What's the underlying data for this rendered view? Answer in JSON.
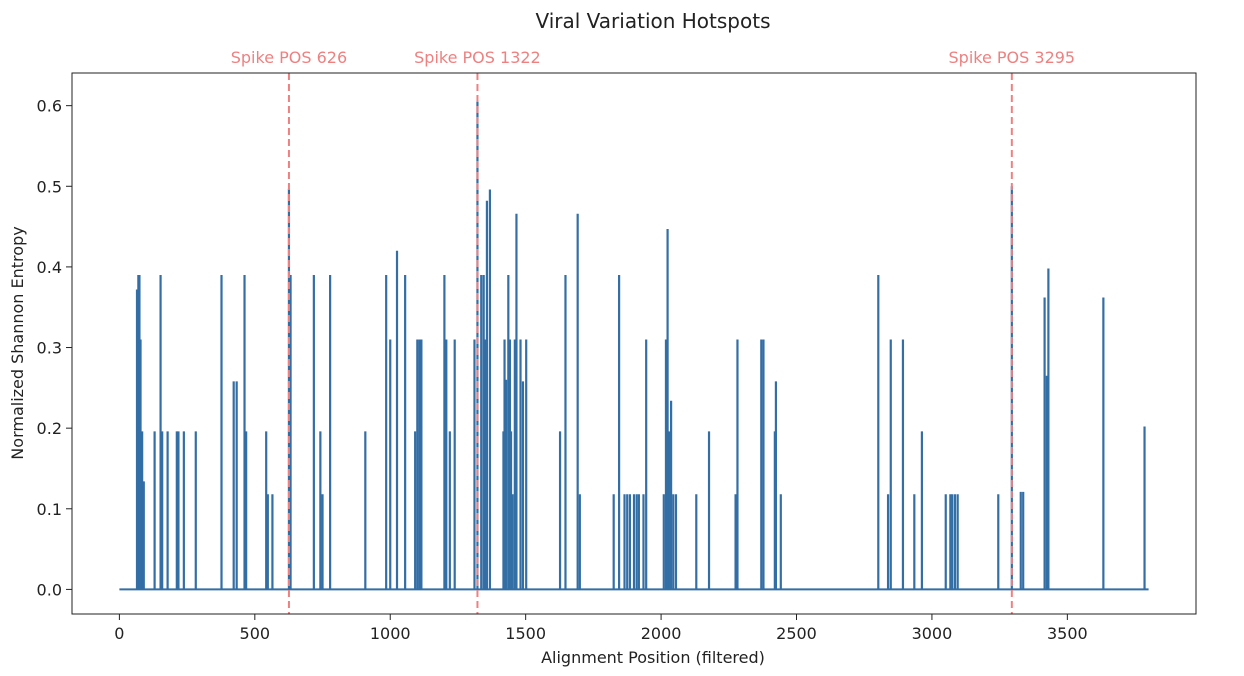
{
  "chart_data": {
    "type": "line",
    "title": "Viral Variation Hotspots",
    "xlabel": "Alignment Position (filtered)",
    "ylabel": "Normalized Shannon Entropy",
    "xlim": [
      -175,
      3975
    ],
    "ylim": [
      -0.0305,
      0.6405
    ],
    "xticks": [
      0,
      500,
      1000,
      1500,
      2000,
      2500,
      3000,
      3500
    ],
    "yticks": [
      0.0,
      0.1,
      0.2,
      0.3,
      0.4,
      0.5,
      0.6
    ],
    "ytick_labels": [
      "0.0",
      "0.1",
      "0.2",
      "0.3",
      "0.4",
      "0.5",
      "0.6"
    ],
    "grid": false,
    "series_color": "#336ea5",
    "annotation_color": "#f08080",
    "x_range": [
      0,
      3800
    ],
    "spikes": [
      [
        65,
        0.372
      ],
      [
        70,
        0.39
      ],
      [
        74,
        0.39
      ],
      [
        78,
        0.31
      ],
      [
        84,
        0.196
      ],
      [
        90,
        0.134
      ],
      [
        130,
        0.196
      ],
      [
        152,
        0.39
      ],
      [
        158,
        0.196
      ],
      [
        178,
        0.196
      ],
      [
        212,
        0.196
      ],
      [
        218,
        0.196
      ],
      [
        238,
        0.196
      ],
      [
        282,
        0.196
      ],
      [
        377,
        0.39
      ],
      [
        422,
        0.258
      ],
      [
        433,
        0.258
      ],
      [
        462,
        0.39
      ],
      [
        468,
        0.196
      ],
      [
        542,
        0.196
      ],
      [
        548,
        0.118
      ],
      [
        565,
        0.118
      ],
      [
        626,
        0.497
      ],
      [
        632,
        0.39
      ],
      [
        718,
        0.39
      ],
      [
        742,
        0.196
      ],
      [
        750,
        0.118
      ],
      [
        778,
        0.39
      ],
      [
        908,
        0.196
      ],
      [
        985,
        0.39
      ],
      [
        1000,
        0.31
      ],
      [
        1025,
        0.42
      ],
      [
        1055,
        0.39
      ],
      [
        1092,
        0.196
      ],
      [
        1100,
        0.31
      ],
      [
        1108,
        0.31
      ],
      [
        1115,
        0.31
      ],
      [
        1200,
        0.39
      ],
      [
        1207,
        0.31
      ],
      [
        1220,
        0.196
      ],
      [
        1238,
        0.31
      ],
      [
        1311,
        0.31
      ],
      [
        1322,
        0.605
      ],
      [
        1336,
        0.39
      ],
      [
        1345,
        0.39
      ],
      [
        1352,
        0.31
      ],
      [
        1357,
        0.482
      ],
      [
        1368,
        0.496
      ],
      [
        1418,
        0.196
      ],
      [
        1422,
        0.31
      ],
      [
        1428,
        0.26
      ],
      [
        1436,
        0.39
      ],
      [
        1442,
        0.31
      ],
      [
        1446,
        0.196
      ],
      [
        1452,
        0.118
      ],
      [
        1460,
        0.31
      ],
      [
        1466,
        0.466
      ],
      [
        1481,
        0.31
      ],
      [
        1490,
        0.258
      ],
      [
        1502,
        0.31
      ],
      [
        1627,
        0.196
      ],
      [
        1647,
        0.39
      ],
      [
        1692,
        0.466
      ],
      [
        1700,
        0.118
      ],
      [
        1825,
        0.118
      ],
      [
        1845,
        0.39
      ],
      [
        1865,
        0.118
      ],
      [
        1875,
        0.118
      ],
      [
        1885,
        0.118
      ],
      [
        1900,
        0.118
      ],
      [
        1910,
        0.118
      ],
      [
        1918,
        0.118
      ],
      [
        1935,
        0.118
      ],
      [
        1945,
        0.31
      ],
      [
        2010,
        0.118
      ],
      [
        2018,
        0.31
      ],
      [
        2024,
        0.447
      ],
      [
        2030,
        0.196
      ],
      [
        2037,
        0.234
      ],
      [
        2045,
        0.118
      ],
      [
        2055,
        0.118
      ],
      [
        2130,
        0.118
      ],
      [
        2177,
        0.196
      ],
      [
        2275,
        0.118
      ],
      [
        2282,
        0.31
      ],
      [
        2370,
        0.31
      ],
      [
        2378,
        0.31
      ],
      [
        2420,
        0.196
      ],
      [
        2424,
        0.258
      ],
      [
        2442,
        0.118
      ],
      [
        2802,
        0.39
      ],
      [
        2838,
        0.118
      ],
      [
        2848,
        0.31
      ],
      [
        2893,
        0.31
      ],
      [
        2935,
        0.118
      ],
      [
        2963,
        0.196
      ],
      [
        3051,
        0.118
      ],
      [
        3068,
        0.118
      ],
      [
        3075,
        0.118
      ],
      [
        3085,
        0.118
      ],
      [
        3095,
        0.118
      ],
      [
        3245,
        0.118
      ],
      [
        3295,
        0.5
      ],
      [
        3328,
        0.121
      ],
      [
        3337,
        0.121
      ],
      [
        3416,
        0.362
      ],
      [
        3424,
        0.265
      ],
      [
        3430,
        0.398
      ],
      [
        3633,
        0.362
      ],
      [
        3785,
        0.202
      ]
    ],
    "vertical_lines": [
      {
        "x": 626,
        "label": "Spike POS 626"
      },
      {
        "x": 1322,
        "label": "Spike POS 1322"
      },
      {
        "x": 3295,
        "label": "Spike POS 3295"
      }
    ]
  }
}
